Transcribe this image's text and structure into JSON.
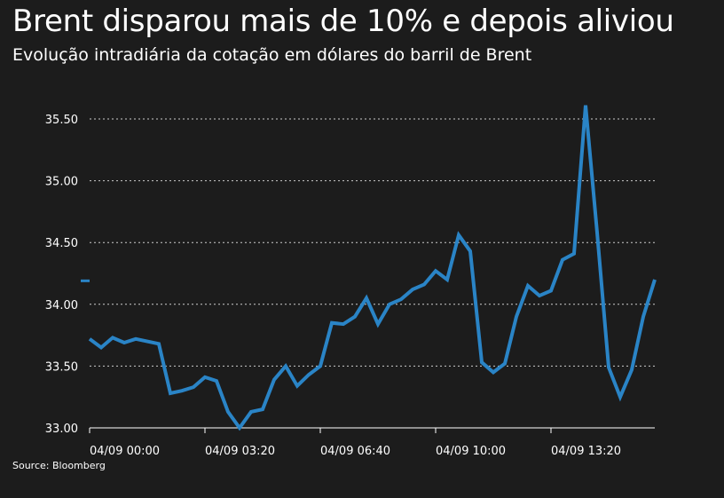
{
  "title": "Brent disparou mais de 10% e depois aliviou",
  "subtitle": "Evolução intradiária da cotação em dólares do barril de Brent",
  "source": "Source: Bloomberg",
  "colors": {
    "background": "#1c1c1c",
    "line": "#2a84c6",
    "grid": "#cccccc",
    "text": "#ffffff"
  },
  "chart_data": {
    "type": "line",
    "ylim": [
      33.0,
      35.6
    ],
    "yticks": [
      33.0,
      33.5,
      34.0,
      34.5,
      35.0,
      35.5
    ],
    "ytick_labels": [
      "33.00",
      "33.50",
      "34.00",
      "34.50",
      "35.00",
      "35.50"
    ],
    "xlim": [
      0,
      49
    ],
    "xticks": [
      0,
      10,
      20,
      30,
      40
    ],
    "xtick_labels": [
      "04/09 00:00",
      "04/09 03:20",
      "04/09 06:40",
      "04/09 10:00",
      "04/09 13:20"
    ],
    "grid": true,
    "marker": {
      "value": 34.19
    },
    "series": [
      {
        "values": [
          33.72,
          33.65,
          33.73,
          33.69,
          33.72,
          33.7,
          33.68,
          33.28,
          33.3,
          33.33,
          33.41,
          33.38,
          33.13,
          33.0,
          33.13,
          33.15,
          33.39,
          33.5,
          33.34,
          33.43,
          33.5,
          33.85,
          33.84,
          33.9,
          34.05,
          33.84,
          34.0,
          34.04,
          34.12,
          34.16,
          34.27,
          34.2,
          34.56,
          34.43,
          33.53,
          33.45,
          33.52,
          33.9,
          34.15,
          34.07,
          34.11,
          34.36,
          34.41,
          35.61,
          34.58,
          33.49,
          33.25,
          33.47,
          33.9,
          34.2
        ]
      }
    ]
  }
}
